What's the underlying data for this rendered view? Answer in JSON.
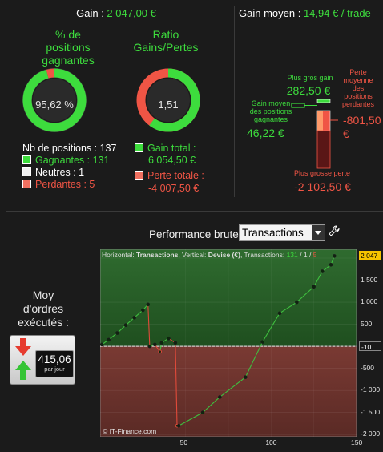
{
  "header": {
    "gain_label": "Gain : ",
    "gain_value": "2 047,00 €",
    "gain_moyen_label": "Gain moyen : ",
    "gain_moyen_value": "14,94 € / trade"
  },
  "win_rate": {
    "title_line1": "% de",
    "title_line2": "positions",
    "title_line3": "gagnantes",
    "value_text": "95,62 %",
    "value_fraction": 0.9562
  },
  "ratio": {
    "title_line1": "Ratio",
    "title_line2": "Gains/Pertes",
    "value_text": "1,51",
    "gain_fraction": 0.6017
  },
  "positions": {
    "total": "Nb de positions : 137",
    "gagnantes": "Gagnantes : 131",
    "neutres": "Neutres : 1",
    "perdantes": "Perdantes : 5"
  },
  "totals": {
    "gain_total_label": "Gain total :",
    "gain_total_value": "6 054,50 €",
    "perte_totale_label": "Perte totale :",
    "perte_totale_value": "-4 007,50 €"
  },
  "gain_moyen_panel": {
    "plus_gros_gain_label": "Plus gros gain",
    "plus_gros_gain_value": "282,50 €",
    "gain_moyen_label_1": "Gain moyen",
    "gain_moyen_label_2": "des positions",
    "gain_moyen_label_3": "gagnantes",
    "gain_moyen_value": "46,22 €",
    "perte_moyenne_label_1": "Perte",
    "perte_moyenne_label_2": "moyenne",
    "perte_moyenne_label_3": "des",
    "perte_moyenne_label_4": "positions",
    "perte_moyenne_label_5": "perdantes",
    "perte_moyenne_value_1": "-801,50",
    "perte_moyenne_value_2": "€",
    "plus_grosse_perte_label": "Plus grosse perte",
    "plus_grosse_perte_value": "-2 102,50 €"
  },
  "orders": {
    "title_line1": "Moy",
    "title_line2": "d'ordres",
    "title_line3": "exécutés :",
    "value": "415,06",
    "unit": "par jour"
  },
  "performance": {
    "label": "Performance brute",
    "select_value": "Transactions",
    "header_prefix": "Horizontal: ",
    "header_h": "Transactions",
    "header_mid": ", Vertical: ",
    "header_v": "Devise (€)",
    "header_tx": ", Transactions: ",
    "header_wins": "131",
    "header_slash1": " / ",
    "header_neutral": "1",
    "header_slash2": " / ",
    "header_losses": "5",
    "watermark": "© IT-Finance.com",
    "last_value_badge": "2 047",
    "zero_badge": "-10"
  },
  "colors": {
    "green": "#3ddc3d",
    "red": "#f05545",
    "badge_yellow": "#f5c400"
  },
  "chart_data": {
    "type": "line",
    "x_ticks": [
      "50",
      "100",
      "150"
    ],
    "y_ticks": [
      "1 500",
      "1 000",
      "500",
      "-500",
      "-1 000",
      "-1 500",
      "-2 000"
    ],
    "xlim": [
      0,
      150
    ],
    "ylim": [
      -2050,
      2200
    ],
    "series": [
      {
        "x": [
          1,
          5,
          10,
          15,
          20,
          25,
          28,
          29,
          32,
          35,
          36,
          40,
          44,
          45,
          46,
          60,
          70,
          85,
          95,
          105,
          115,
          125,
          130,
          135,
          137
        ],
        "values": [
          40,
          150,
          300,
          480,
          650,
          820,
          950,
          0,
          40,
          -120,
          80,
          180,
          80,
          -1800,
          -1800,
          -1500,
          -1150,
          -700,
          100,
          750,
          1000,
          1350,
          1700,
          1850,
          2047
        ]
      }
    ]
  }
}
